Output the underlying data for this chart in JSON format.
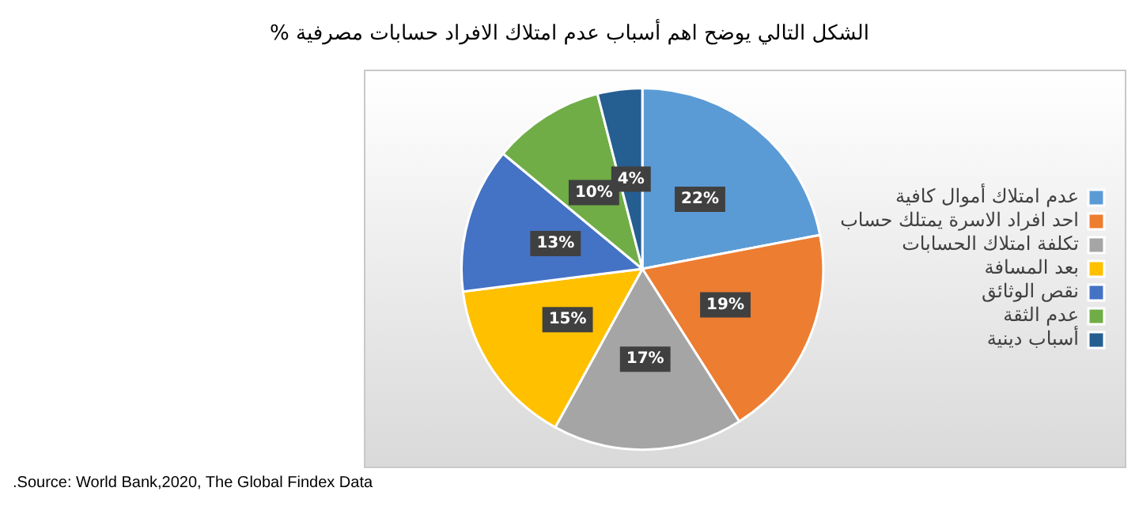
{
  "chart_data": {
    "type": "pie",
    "title": "الشكل التالي يوضح اهم أسباب عدم امتلاك الافراد حسابات مصرفية %",
    "categories": [
      "عدم امتلاك أموال كافية",
      "احد افراد الاسرة يمتلك حساب",
      "تكلفة امتلاك الحسابات",
      "بعد المسافة",
      "نقص الوثائق",
      "عدم الثقة",
      "أسباب دينية"
    ],
    "values": [
      22,
      19,
      17,
      15,
      13,
      10,
      4
    ],
    "colors": [
      "#5b9bd5",
      "#ed7d31",
      "#a5a5a5",
      "#ffc000",
      "#4472c4",
      "#70ad47",
      "#255e91"
    ],
    "value_labels": [
      "22%",
      "19%",
      "17%",
      "15%",
      "13%",
      "10%",
      "4%"
    ],
    "legend": "right",
    "annotations": [
      ".Source: World Bank,2020, The Global Findex Data"
    ]
  }
}
